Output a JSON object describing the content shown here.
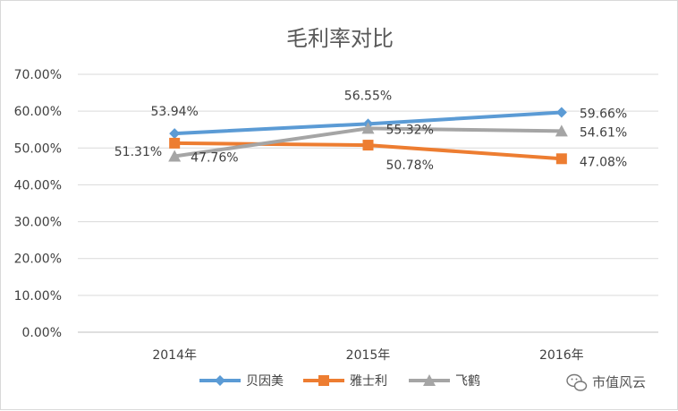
{
  "chart_data": {
    "type": "line",
    "title": "毛利率对比",
    "categories": [
      "2014年",
      "2015年",
      "2016年"
    ],
    "ylim": [
      0,
      70
    ],
    "ytick_labels": [
      "0.00%",
      "10.00%",
      "20.00%",
      "30.00%",
      "40.00%",
      "50.00%",
      "60.00%",
      "70.00%"
    ],
    "grid": true,
    "legend_position": "bottom",
    "series": [
      {
        "name": "贝因美",
        "values": [
          53.94,
          56.55,
          59.66
        ],
        "labels": [
          "53.94%",
          "56.55%",
          "59.66%"
        ],
        "color": "#5b9bd5",
        "marker": "diamond"
      },
      {
        "name": "雅士利",
        "values": [
          51.31,
          50.78,
          47.08
        ],
        "labels": [
          "51.31%",
          "50.78%",
          "47.08%"
        ],
        "color": "#ed7d31",
        "marker": "square"
      },
      {
        "name": "飞鹤",
        "values": [
          47.76,
          55.32,
          54.61
        ],
        "labels": [
          "47.76%",
          "55.32%",
          "54.61%"
        ],
        "color": "#a5a5a5",
        "marker": "triangle"
      }
    ]
  },
  "watermark": {
    "text": "市值风云",
    "icon": "wechat-icon"
  }
}
